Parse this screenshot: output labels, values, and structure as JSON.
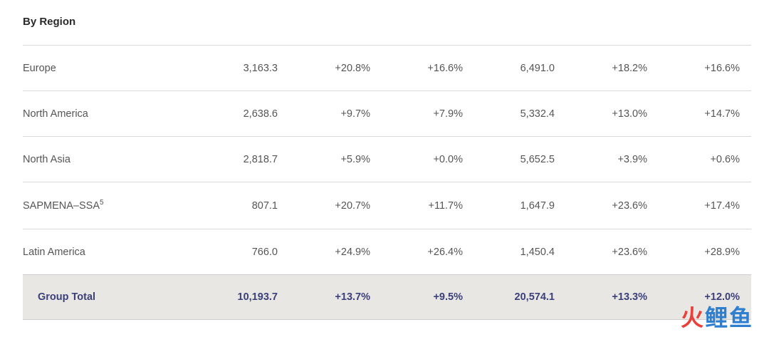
{
  "section_title": "By Region",
  "rows": [
    {
      "label": "Europe",
      "sup": "",
      "values": [
        "3,163.3",
        "+20.8%",
        "+16.6%",
        "6,491.0",
        "+18.2%",
        "+16.6%"
      ]
    },
    {
      "label": "North America",
      "sup": "",
      "values": [
        "2,638.6",
        "+9.7%",
        "+7.9%",
        "5,332.4",
        "+13.0%",
        "+14.7%"
      ]
    },
    {
      "label": "North Asia",
      "sup": "",
      "values": [
        "2,818.7",
        "+5.9%",
        "+0.0%",
        "5,652.5",
        "+3.9%",
        "+0.6%"
      ]
    },
    {
      "label": "SAPMENA–SSA",
      "sup": "5",
      "values": [
        "807.1",
        "+20.7%",
        "+11.7%",
        "1,647.9",
        "+23.6%",
        "+17.4%"
      ]
    },
    {
      "label": "Latin America",
      "sup": "",
      "values": [
        "766.0",
        "+24.9%",
        "+26.4%",
        "1,450.4",
        "+23.6%",
        "+28.9%"
      ]
    }
  ],
  "total": {
    "label": "Group Total",
    "values": [
      "10,193.7",
      "+13.7%",
      "+9.5%",
      "20,574.1",
      "+13.3%",
      "+12.0%"
    ]
  },
  "watermark": {
    "part1": "火",
    "part2": "鲤鱼"
  }
}
